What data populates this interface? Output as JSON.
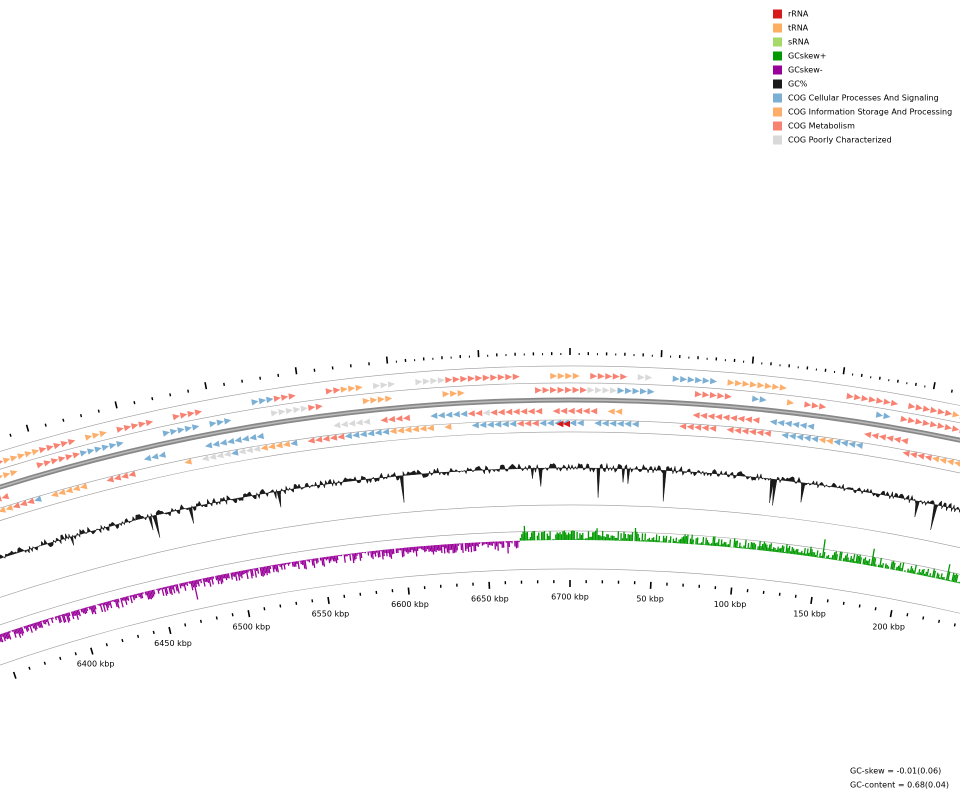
{
  "legend": [
    {
      "label": "rRNA",
      "color": "#d7191c"
    },
    {
      "label": "tRNA",
      "color": "#fdae61"
    },
    {
      "label": "sRNA",
      "color": "#a6d96a"
    },
    {
      "label": "GCskew+",
      "color": "#009900"
    },
    {
      "label": "GCskew-",
      "color": "#990099"
    },
    {
      "label": "GC%",
      "color": "#1a1a1a"
    },
    {
      "label": "COG Cellular Processes And Signaling",
      "color": "#7bafd4"
    },
    {
      "label": "COG Information Storage And Processing",
      "color": "#fdae6b"
    },
    {
      "label": "COG Metabolism",
      "color": "#f78272"
    },
    {
      "label": "COG Poorly Characterized",
      "color": "#d9d9d9"
    }
  ],
  "tick_labels": [
    "6400 kbp",
    "6450 kbp",
    "6500 kbp",
    "6550 kbp",
    "6600 kbp",
    "6650 kbp",
    "6700 kbp",
    "50 kbp",
    "100 kbp",
    "150 kbp",
    "200 kbp"
  ],
  "footer": [
    "GC-skew = -0.01(0.06)",
    "GC-content = 0.68(0.04)"
  ]
}
